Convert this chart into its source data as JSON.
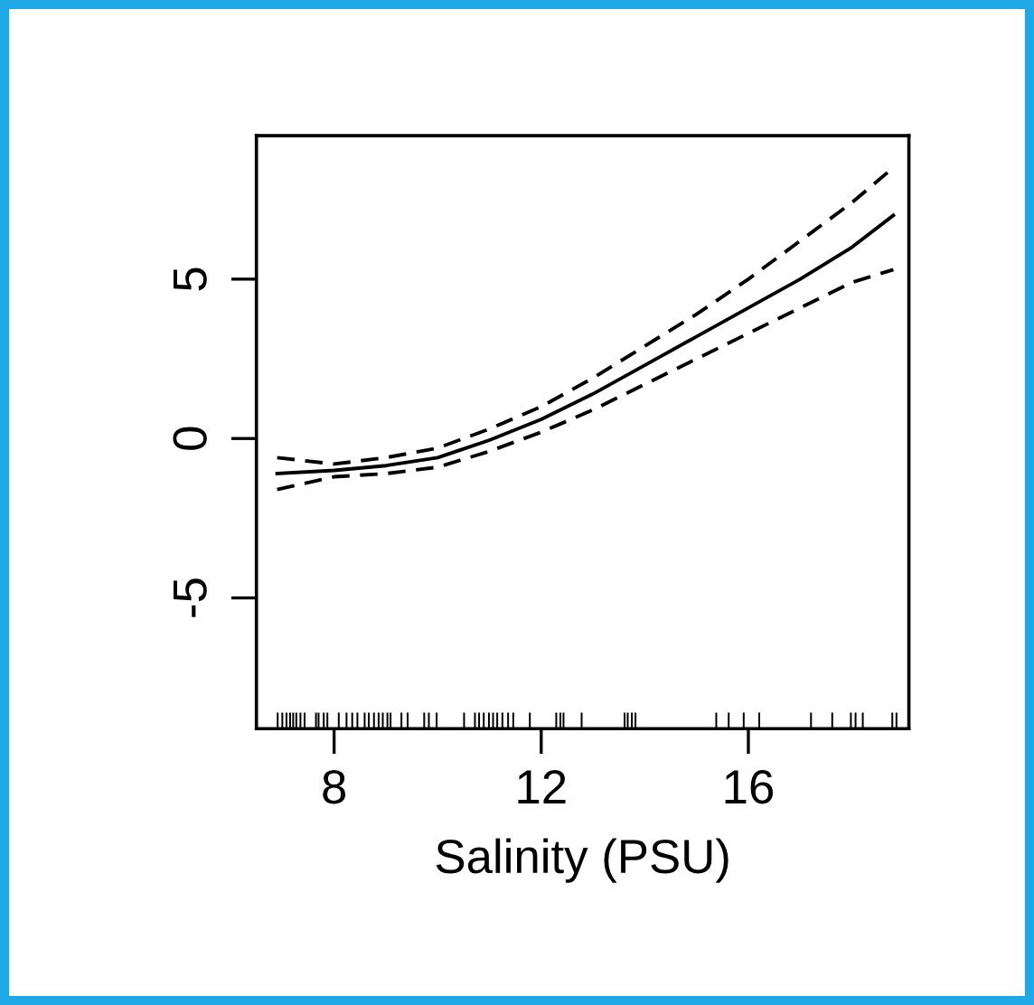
{
  "chart_data": {
    "type": "line",
    "xlabel": "Salinity (PSU)",
    "xlim": [
      6.5,
      19.1
    ],
    "ylim": [
      -9.1,
      9.5
    ],
    "xticks": [
      8,
      12,
      16
    ],
    "yticks": [
      -5,
      0,
      5
    ],
    "grid": false,
    "marker": "none",
    "series": [
      {
        "x": [
          6.9,
          8,
          9,
          10,
          11,
          12,
          13,
          14,
          15,
          16,
          17,
          18,
          18.8
        ],
        "values": [
          -1.1,
          -1.0,
          -0.85,
          -0.6,
          -0.05,
          0.6,
          1.4,
          2.3,
          3.2,
          4.1,
          5.0,
          6.0,
          7.0
        ],
        "color": "#000000",
        "line_style": "solid"
      },
      {
        "x": [
          6.9,
          8,
          9,
          10,
          11,
          12,
          13,
          14,
          15,
          16,
          17,
          18,
          18.8
        ],
        "values": [
          -0.6,
          -0.8,
          -0.6,
          -0.3,
          0.3,
          1.0,
          1.9,
          2.9,
          3.9,
          5.0,
          6.2,
          7.4,
          8.5
        ],
        "color": "#000000",
        "line_style": "dashed"
      },
      {
        "x": [
          6.9,
          8,
          9,
          10,
          11,
          12,
          13,
          14,
          15,
          16,
          17,
          18,
          18.8
        ],
        "values": [
          -1.6,
          -1.2,
          -1.1,
          -0.9,
          -0.4,
          0.2,
          0.9,
          1.7,
          2.5,
          3.3,
          4.1,
          4.9,
          5.3
        ],
        "color": "#000000",
        "line_style": "dashed"
      },
      {
        "type": "bar",
        "color": "#000000",
        "base": [
          -9.1,
          -9.1,
          -9.1,
          -9.1,
          -9.1,
          -9.1,
          -9.1,
          -9.1,
          -9.1,
          -9.1,
          -9.1,
          -9.1,
          -9.1,
          -9.1,
          -9.1,
          -9.1,
          -9.1,
          -9.1,
          -9.1,
          -9.1,
          -9.1,
          -9.1,
          -9.1,
          -9.1,
          -9.1,
          -9.1,
          -9.1,
          -9.1,
          -9.1,
          -9.1,
          -9.1,
          -9.1,
          -9.1,
          -9.1,
          -9.1,
          -9.1,
          -9.1,
          -9.1,
          -9.1,
          -9.1,
          -9.1,
          -9.1,
          -9.1,
          -9.1,
          -9.1,
          -9.1,
          -9.1,
          -9.1,
          -9.1,
          -9.1,
          -9.1,
          -9.1,
          -9.1,
          -9.1,
          -9.1,
          -9.1,
          -9.1,
          -9.1
        ],
        "x": [
          6.91,
          7.0,
          7.08,
          7.15,
          7.21,
          7.27,
          7.35,
          7.43,
          7.65,
          7.7,
          7.8,
          7.87,
          8.09,
          8.24,
          8.35,
          8.45,
          8.59,
          8.67,
          8.77,
          8.86,
          8.94,
          9.03,
          9.09,
          9.3,
          9.42,
          9.74,
          9.83,
          9.98,
          10.51,
          10.72,
          10.8,
          10.89,
          10.99,
          11.07,
          11.15,
          11.25,
          11.36,
          11.46,
          11.78,
          12.29,
          12.37,
          12.43,
          12.78,
          13.61,
          13.67,
          13.75,
          13.82,
          15.38,
          15.62,
          15.91,
          16.21,
          17.21,
          17.62,
          17.98,
          18.07,
          18.21,
          18.78,
          18.86
        ],
        "values": [
          0.5,
          0.5,
          0.5,
          0.5,
          0.5,
          0.5,
          0.5,
          0.5,
          0.5,
          0.5,
          0.5,
          0.5,
          0.5,
          0.5,
          0.5,
          0.5,
          0.5,
          0.5,
          0.5,
          0.5,
          0.5,
          0.5,
          0.5,
          0.5,
          0.5,
          0.5,
          0.5,
          0.5,
          0.5,
          0.5,
          0.5,
          0.5,
          0.5,
          0.5,
          0.5,
          0.5,
          0.5,
          0.5,
          0.5,
          0.5,
          0.5,
          0.5,
          0.5,
          0.5,
          0.5,
          0.5,
          0.5,
          0.5,
          0.5,
          0.5,
          0.5,
          0.5,
          0.5,
          0.5,
          0.5,
          0.5,
          0.5,
          0.5
        ]
      }
    ]
  }
}
